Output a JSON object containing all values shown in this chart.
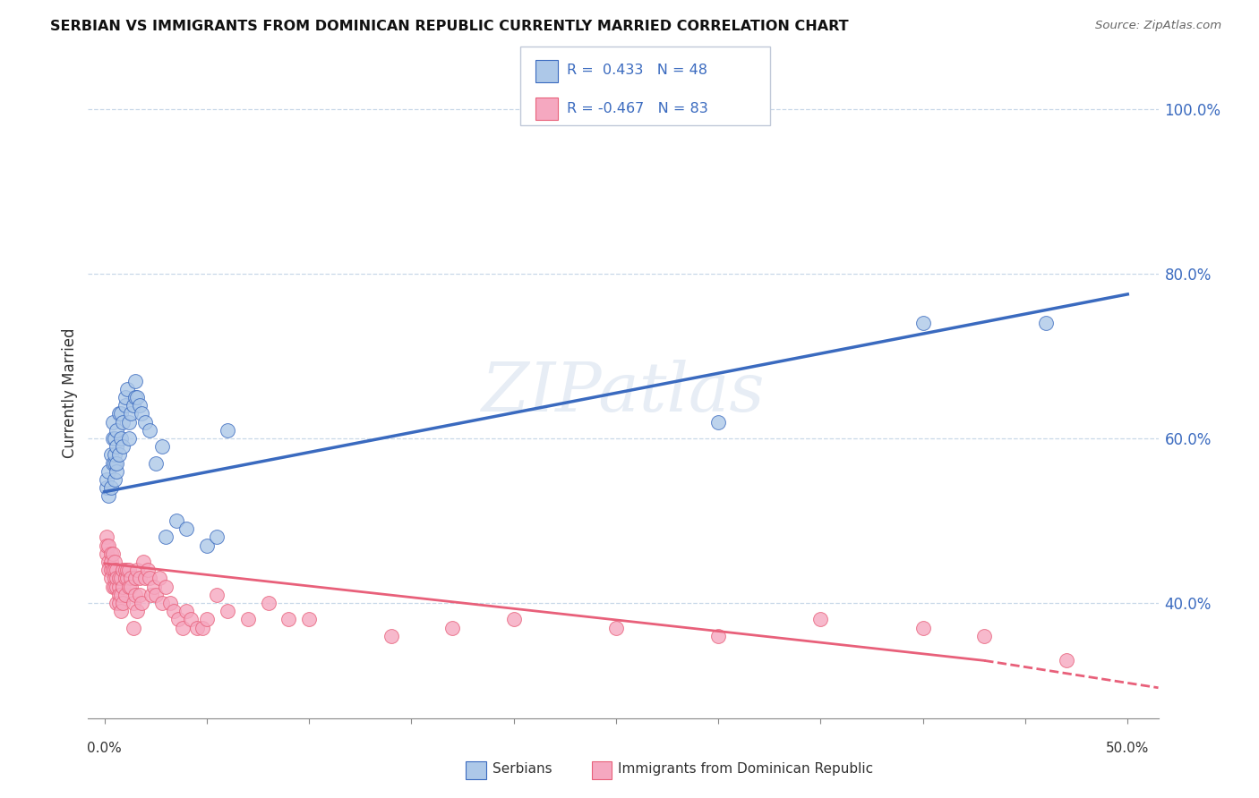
{
  "title": "SERBIAN VS IMMIGRANTS FROM DOMINICAN REPUBLIC CURRENTLY MARRIED CORRELATION CHART",
  "source": "Source: ZipAtlas.com",
  "ylabel": "Currently Married",
  "yticks": [
    0.4,
    0.6,
    0.8,
    1.0
  ],
  "ytick_labels": [
    "40.0%",
    "60.0%",
    "80.0%",
    "100.0%"
  ],
  "serbian_R": 0.433,
  "serbian_N": 48,
  "dominican_R": -0.467,
  "dominican_N": 83,
  "serbian_color": "#adc8e8",
  "dominican_color": "#f5a8c0",
  "serbian_line_color": "#3a6abf",
  "dominican_line_color": "#e8607a",
  "background_color": "#ffffff",
  "grid_color": "#c8d8e8",
  "watermark": "ZIPatlas",
  "serbian_scatter_x": [
    0.001,
    0.001,
    0.002,
    0.002,
    0.003,
    0.003,
    0.004,
    0.004,
    0.004,
    0.005,
    0.005,
    0.005,
    0.005,
    0.006,
    0.006,
    0.006,
    0.006,
    0.007,
    0.007,
    0.008,
    0.008,
    0.009,
    0.009,
    0.01,
    0.01,
    0.011,
    0.012,
    0.012,
    0.013,
    0.014,
    0.015,
    0.015,
    0.016,
    0.017,
    0.018,
    0.02,
    0.022,
    0.025,
    0.028,
    0.03,
    0.035,
    0.04,
    0.05,
    0.055,
    0.06,
    0.3,
    0.4,
    0.46
  ],
  "serbian_scatter_y": [
    0.54,
    0.55,
    0.53,
    0.56,
    0.54,
    0.58,
    0.57,
    0.6,
    0.62,
    0.55,
    0.57,
    0.58,
    0.6,
    0.56,
    0.57,
    0.59,
    0.61,
    0.58,
    0.63,
    0.6,
    0.63,
    0.59,
    0.62,
    0.64,
    0.65,
    0.66,
    0.6,
    0.62,
    0.63,
    0.64,
    0.65,
    0.67,
    0.65,
    0.64,
    0.63,
    0.62,
    0.61,
    0.57,
    0.59,
    0.48,
    0.5,
    0.49,
    0.47,
    0.48,
    0.61,
    0.62,
    0.74,
    0.74
  ],
  "dominican_scatter_x": [
    0.001,
    0.001,
    0.001,
    0.002,
    0.002,
    0.002,
    0.003,
    0.003,
    0.003,
    0.003,
    0.004,
    0.004,
    0.004,
    0.005,
    0.005,
    0.005,
    0.005,
    0.006,
    0.006,
    0.006,
    0.006,
    0.007,
    0.007,
    0.007,
    0.007,
    0.008,
    0.008,
    0.008,
    0.009,
    0.009,
    0.009,
    0.01,
    0.01,
    0.01,
    0.011,
    0.011,
    0.012,
    0.012,
    0.013,
    0.013,
    0.014,
    0.014,
    0.015,
    0.015,
    0.016,
    0.016,
    0.017,
    0.017,
    0.018,
    0.019,
    0.02,
    0.021,
    0.022,
    0.023,
    0.024,
    0.025,
    0.027,
    0.028,
    0.03,
    0.032,
    0.034,
    0.036,
    0.038,
    0.04,
    0.042,
    0.045,
    0.048,
    0.05,
    0.055,
    0.06,
    0.07,
    0.08,
    0.09,
    0.1,
    0.14,
    0.17,
    0.2,
    0.25,
    0.3,
    0.35,
    0.4,
    0.43,
    0.47
  ],
  "dominican_scatter_y": [
    0.48,
    0.46,
    0.47,
    0.47,
    0.45,
    0.44,
    0.46,
    0.44,
    0.45,
    0.43,
    0.44,
    0.46,
    0.42,
    0.43,
    0.45,
    0.42,
    0.44,
    0.42,
    0.44,
    0.4,
    0.43,
    0.42,
    0.41,
    0.43,
    0.4,
    0.41,
    0.39,
    0.43,
    0.44,
    0.42,
    0.4,
    0.44,
    0.43,
    0.41,
    0.43,
    0.44,
    0.42,
    0.44,
    0.43,
    0.42,
    0.4,
    0.37,
    0.43,
    0.41,
    0.39,
    0.44,
    0.43,
    0.41,
    0.4,
    0.45,
    0.43,
    0.44,
    0.43,
    0.41,
    0.42,
    0.41,
    0.43,
    0.4,
    0.42,
    0.4,
    0.39,
    0.38,
    0.37,
    0.39,
    0.38,
    0.37,
    0.37,
    0.38,
    0.41,
    0.39,
    0.38,
    0.4,
    0.38,
    0.38,
    0.36,
    0.37,
    0.38,
    0.37,
    0.36,
    0.38,
    0.37,
    0.36,
    0.33
  ],
  "xlim_min": -0.008,
  "xlim_max": 0.515,
  "ylim_min": 0.26,
  "ylim_max": 1.05
}
